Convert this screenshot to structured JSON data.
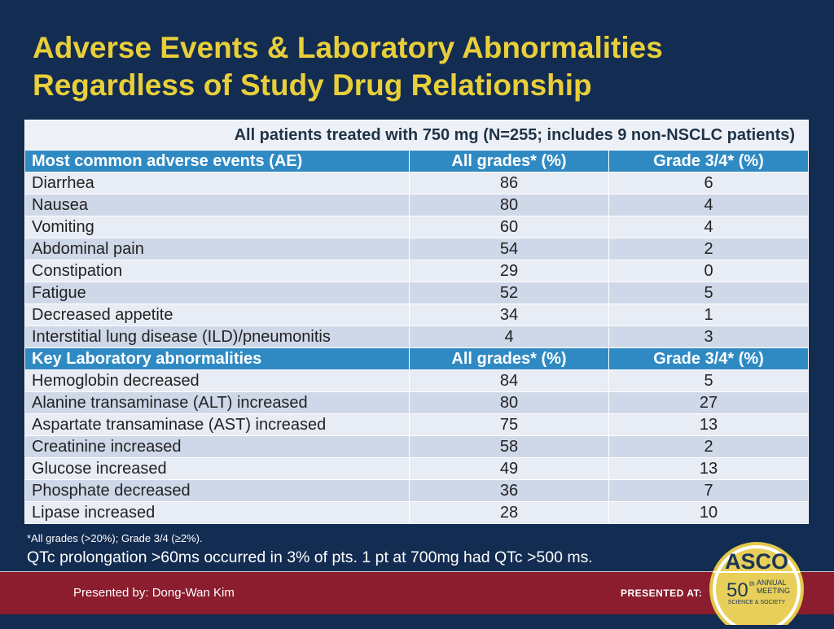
{
  "title": {
    "line1": "Adverse Events & Laboratory Abnormalities",
    "line2": "Regardless of Study Drug Relationship"
  },
  "table": {
    "banner": "All patients treated with 750 mg (N=255; includes 9 non-NSCLC patients)",
    "ae_header": [
      "Most common adverse events (AE)",
      "All grades* (%)",
      "Grade 3/4* (%)"
    ],
    "ae_rows": [
      [
        "Diarrhea",
        "86",
        "6"
      ],
      [
        "Nausea",
        "80",
        "4"
      ],
      [
        "Vomiting",
        "60",
        "4"
      ],
      [
        "Abdominal pain",
        "54",
        "2"
      ],
      [
        "Constipation",
        "29",
        "0"
      ],
      [
        "Fatigue",
        "52",
        "5"
      ],
      [
        "Decreased appetite",
        "34",
        "1"
      ],
      [
        "Interstitial lung disease (ILD)/pneumonitis",
        "4",
        "3"
      ]
    ],
    "lab_header": [
      "Key Laboratory abnormalities",
      "All grades* (%)",
      "Grade 3/4* (%)"
    ],
    "lab_rows": [
      [
        "Hemoglobin decreased",
        "84",
        "5"
      ],
      [
        "Alanine transaminase (ALT) increased",
        "80",
        "27"
      ],
      [
        "Aspartate transaminase (AST) increased",
        "75",
        "13"
      ],
      [
        "Creatinine increased",
        "58",
        "2"
      ],
      [
        "Glucose increased",
        "49",
        "13"
      ],
      [
        "Phosphate decreased",
        "36",
        "7"
      ],
      [
        "Lipase increased",
        "28",
        "10"
      ]
    ]
  },
  "footnote": "*All grades (>20%); Grade 3/4 (≥2%).",
  "qtc_note": "QTc prolongation >60ms occurred in 3% of pts.  1 pt at 700mg had QTc >500 ms.",
  "footer": {
    "presenter": "Presented by: Dong-Wan Kim",
    "presented_at": "PRESENTED AT:",
    "logo": {
      "name": "ASCO",
      "number": "50",
      "superscript": "th",
      "line1": "ANNUAL",
      "line2": "MEETING",
      "line3": "SCIENCE & SOCIETY"
    }
  },
  "colors": {
    "background": "#132c52",
    "title": "#e8cf3a",
    "section_header": "#2f8ac4",
    "footer_bar": "#8b1d2e"
  }
}
